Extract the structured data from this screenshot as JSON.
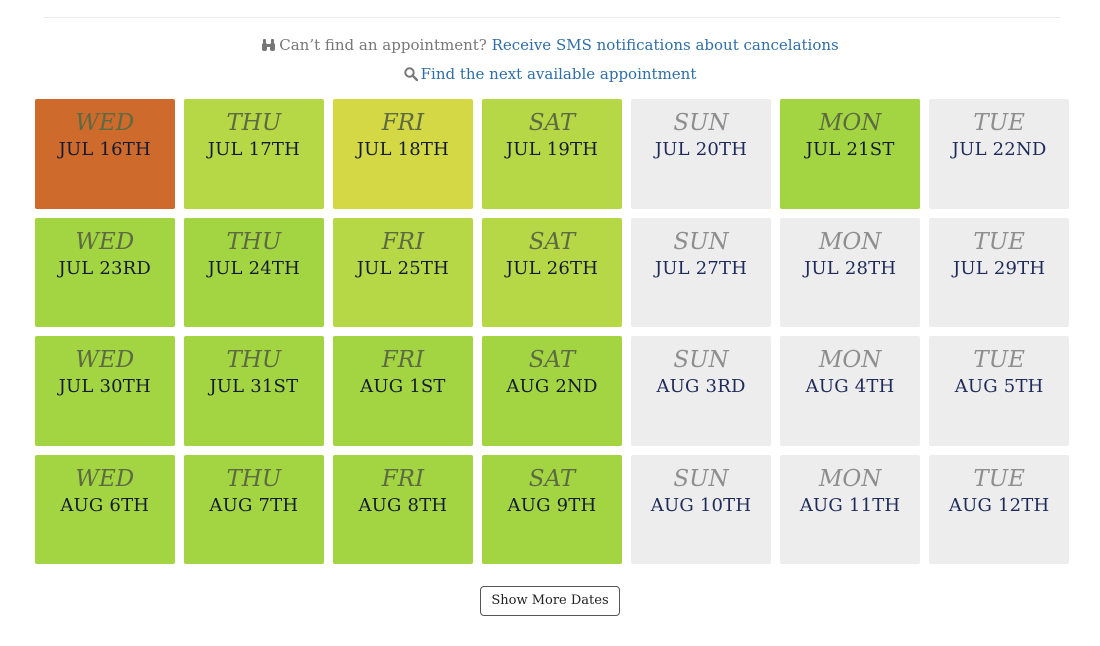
{
  "sms_notice": {
    "prefix": "Can’t find an appointment?",
    "link": "Receive SMS notifications about cancelations",
    "icon": "binoculars-icon"
  },
  "next_available": {
    "link": "Find the next available appointment",
    "icon": "search-icon"
  },
  "colors": {
    "busiest": "#cd6a2c",
    "limited": "#d3d844",
    "moderate": "#b7d846",
    "open": "#a3d543",
    "unavailable": "#ededed"
  },
  "days": [
    {
      "weekday": "WED",
      "date": "JUL 16TH",
      "status": "busiest"
    },
    {
      "weekday": "THU",
      "date": "JUL 17TH",
      "status": "moderate"
    },
    {
      "weekday": "FRI",
      "date": "JUL 18TH",
      "status": "limited"
    },
    {
      "weekday": "SAT",
      "date": "JUL 19TH",
      "status": "moderate"
    },
    {
      "weekday": "SUN",
      "date": "JUL 20TH",
      "status": "unavailable"
    },
    {
      "weekday": "MON",
      "date": "JUL 21ST",
      "status": "open"
    },
    {
      "weekday": "TUE",
      "date": "JUL 22ND",
      "status": "unavailable"
    },
    {
      "weekday": "WED",
      "date": "JUL 23RD",
      "status": "open"
    },
    {
      "weekday": "THU",
      "date": "JUL 24TH",
      "status": "open"
    },
    {
      "weekday": "FRI",
      "date": "JUL 25TH",
      "status": "moderate"
    },
    {
      "weekday": "SAT",
      "date": "JUL 26TH",
      "status": "moderate"
    },
    {
      "weekday": "SUN",
      "date": "JUL 27TH",
      "status": "unavailable"
    },
    {
      "weekday": "MON",
      "date": "JUL 28TH",
      "status": "unavailable"
    },
    {
      "weekday": "TUE",
      "date": "JUL 29TH",
      "status": "unavailable"
    },
    {
      "weekday": "WED",
      "date": "JUL 30TH",
      "status": "open"
    },
    {
      "weekday": "THU",
      "date": "JUL 31ST",
      "status": "open"
    },
    {
      "weekday": "FRI",
      "date": "AUG 1ST",
      "status": "open"
    },
    {
      "weekday": "SAT",
      "date": "AUG 2ND",
      "status": "open"
    },
    {
      "weekday": "SUN",
      "date": "AUG 3RD",
      "status": "unavailable"
    },
    {
      "weekday": "MON",
      "date": "AUG 4TH",
      "status": "unavailable"
    },
    {
      "weekday": "TUE",
      "date": "AUG 5TH",
      "status": "unavailable"
    },
    {
      "weekday": "WED",
      "date": "AUG 6TH",
      "status": "open"
    },
    {
      "weekday": "THU",
      "date": "AUG 7TH",
      "status": "open"
    },
    {
      "weekday": "FRI",
      "date": "AUG 8TH",
      "status": "open"
    },
    {
      "weekday": "SAT",
      "date": "AUG 9TH",
      "status": "open"
    },
    {
      "weekday": "SUN",
      "date": "AUG 10TH",
      "status": "unavailable"
    },
    {
      "weekday": "MON",
      "date": "AUG 11TH",
      "status": "unavailable"
    },
    {
      "weekday": "TUE",
      "date": "AUG 12TH",
      "status": "unavailable"
    }
  ],
  "show_more_label": "Show More Dates"
}
